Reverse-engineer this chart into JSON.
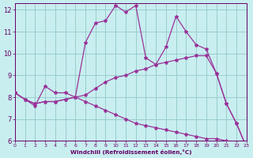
{
  "background_color": "#c8eef0",
  "line_color": "#993399",
  "grid_color": "#99cccc",
  "xlabel": "Windchill (Refroidissement éolien,°C)",
  "xlabel_color": "#660066",
  "tick_color": "#660066",
  "xlim": [
    0,
    23
  ],
  "ylim": [
    6,
    12.3
  ],
  "xticks": [
    0,
    1,
    2,
    3,
    4,
    5,
    6,
    7,
    8,
    9,
    10,
    11,
    12,
    13,
    14,
    15,
    16,
    17,
    18,
    19,
    20,
    21,
    22,
    23
  ],
  "yticks": [
    6,
    7,
    8,
    9,
    10,
    11,
    12
  ],
  "line1_x": [
    0,
    1,
    2,
    3,
    4,
    5,
    6,
    7,
    8,
    9,
    10,
    11,
    12,
    13,
    14,
    15,
    16,
    17,
    18,
    19,
    20,
    21,
    22,
    23
  ],
  "line1_y": [
    8.2,
    7.9,
    7.6,
    8.5,
    8.2,
    8.2,
    8.0,
    10.5,
    11.4,
    11.5,
    12.2,
    11.9,
    12.2,
    9.8,
    9.5,
    10.3,
    11.7,
    11.0,
    10.4,
    10.2,
    9.1,
    7.7,
    6.8,
    5.7
  ],
  "line2_x": [
    0,
    1,
    2,
    3,
    4,
    5,
    6,
    7,
    8,
    9,
    10,
    11,
    12,
    13,
    14,
    15,
    16,
    17,
    18,
    19,
    20,
    21,
    22,
    23
  ],
  "line2_y": [
    8.2,
    7.9,
    7.7,
    7.8,
    7.8,
    7.9,
    8.0,
    8.1,
    8.4,
    8.7,
    8.9,
    9.0,
    9.2,
    9.3,
    9.5,
    9.6,
    9.7,
    9.8,
    9.9,
    9.9,
    9.1,
    7.7,
    6.8,
    5.7
  ],
  "line3_x": [
    0,
    1,
    2,
    3,
    4,
    5,
    6,
    7,
    8,
    9,
    10,
    11,
    12,
    13,
    14,
    15,
    16,
    17,
    18,
    19,
    20,
    21,
    22,
    23
  ],
  "line3_y": [
    8.2,
    7.9,
    7.7,
    7.8,
    7.8,
    7.9,
    8.0,
    7.8,
    7.6,
    7.4,
    7.2,
    7.0,
    6.8,
    6.7,
    6.6,
    6.5,
    6.4,
    6.3,
    6.2,
    6.1,
    6.1,
    6.0,
    5.9,
    5.7
  ]
}
